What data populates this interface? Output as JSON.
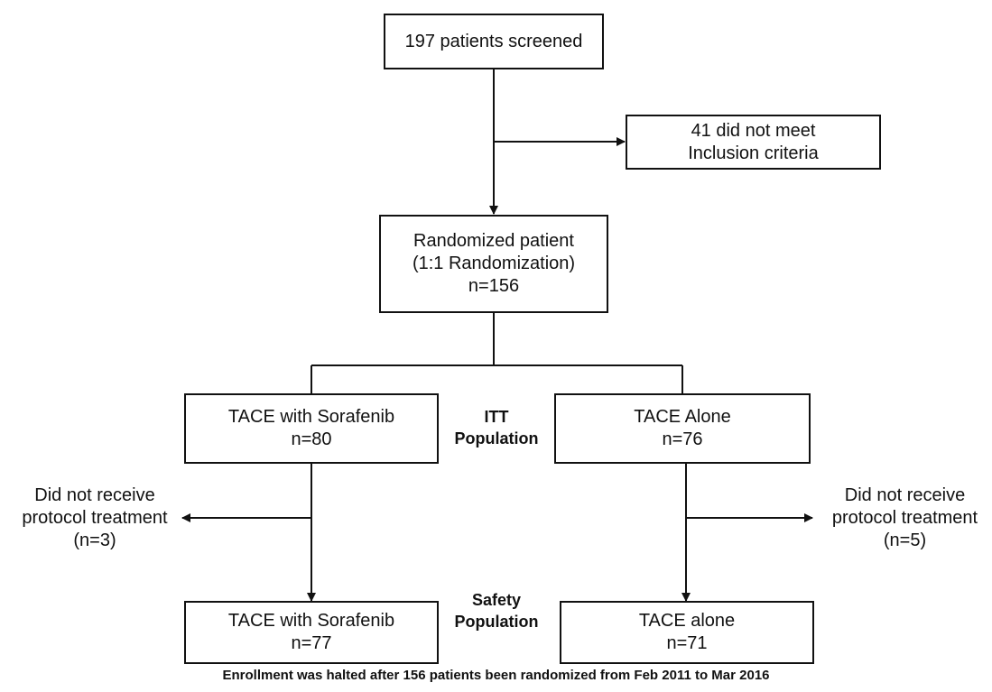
{
  "screened": {
    "label": "197 patients screened"
  },
  "excluded": {
    "line1": "41 did not meet",
    "line2": "Inclusion criteria"
  },
  "randomized": {
    "line1": "Randomized patient",
    "line2": "(1:1 Randomization)",
    "line3": "n=156"
  },
  "itt": {
    "label_line1": "ITT",
    "label_line2": "Population",
    "left": {
      "line1": "TACE with Sorafenib",
      "line2": "n=80"
    },
    "right": {
      "line1": "TACE Alone",
      "line2": "n=76"
    }
  },
  "no_treatment": {
    "left": {
      "line1": "Did not receive",
      "line2": "protocol treatment",
      "line3": "(n=3)"
    },
    "right": {
      "line1": "Did not receive",
      "line2": "protocol treatment",
      "line3": "(n=5)"
    }
  },
  "safety": {
    "label_line1": "Safety",
    "label_line2": "Population",
    "left": {
      "line1": "TACE with Sorafenib",
      "line2": "n=77"
    },
    "right": {
      "line1": "TACE alone",
      "line2": "n=71"
    }
  },
  "footnote": "Enrollment was halted after 156 patients been randomized from Feb 2011 to Mar 2016"
}
